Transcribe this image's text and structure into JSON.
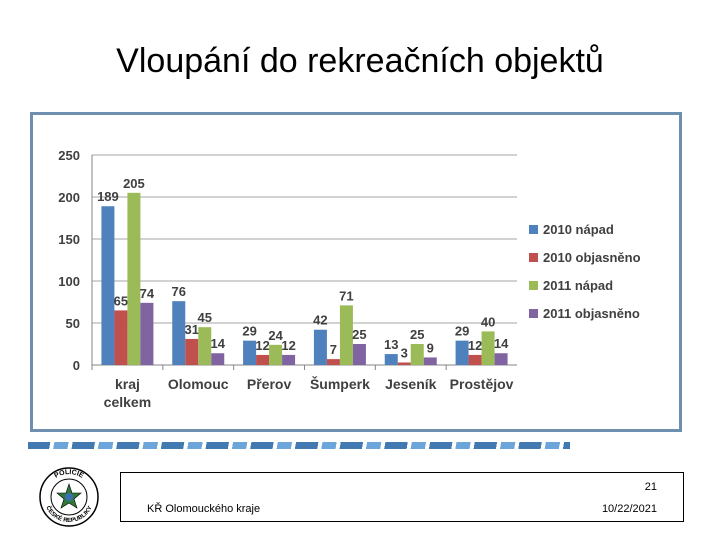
{
  "slide": {
    "title": "Vloupání do rekreačních objektů",
    "page_number": "21",
    "organization": "KŘ Olomouckého kraje",
    "date": "10/22/2021"
  },
  "logo": {
    "text_top": "POLICIE",
    "text_bottom": "ČESKÉ REPUBLIKY"
  },
  "chart_data": {
    "type": "bar",
    "title": "",
    "xlabel": "",
    "ylabel": "",
    "ylim": [
      0,
      250
    ],
    "yticks": [
      0,
      50,
      100,
      150,
      200,
      250
    ],
    "grid": true,
    "legend_position": "right",
    "categories": [
      [
        "kraj",
        "celkem"
      ],
      [
        "Olomouc"
      ],
      [
        "Přerov"
      ],
      [
        "Šumperk"
      ],
      [
        "Jeseník"
      ],
      [
        "Prostějov"
      ]
    ],
    "series": [
      {
        "name": "2010 nápad",
        "color": "#4f81bd",
        "values": [
          189,
          76,
          29,
          42,
          13,
          29
        ]
      },
      {
        "name": "2010 objasněno",
        "color": "#c0504d",
        "values": [
          65,
          31,
          12,
          7,
          3,
          12
        ]
      },
      {
        "name": "2011 nápad",
        "color": "#9bbb59",
        "values": [
          205,
          45,
          24,
          71,
          25,
          40
        ]
      },
      {
        "name": "2011 objasněno",
        "color": "#8064a2",
        "values": [
          74,
          14,
          12,
          25,
          9,
          14
        ]
      }
    ]
  }
}
